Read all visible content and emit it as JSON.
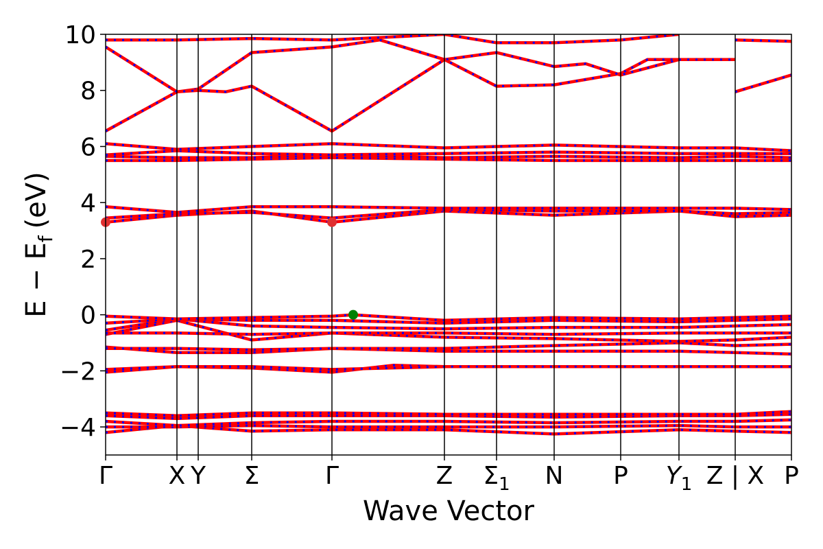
{
  "chart_data": {
    "type": "line",
    "title": "",
    "xlabel": "Wave Vector",
    "ylabel_main": "E − E",
    "ylabel_sub": "f",
    "ylabel_unit": "(eV)",
    "ylim": [
      -5,
      10
    ],
    "yticks": [
      -4,
      -2,
      0,
      2,
      4,
      6,
      8,
      10
    ],
    "ytick_labels": [
      "−4",
      "−2",
      "0",
      "2",
      "4",
      "6",
      "8",
      "10"
    ],
    "grid": false,
    "kpath": [
      {
        "label": "Γ",
        "x": 0.0
      },
      {
        "label": "X",
        "x": 0.104
      },
      {
        "label": "Y",
        "x": 0.135
      },
      {
        "label": "Σ",
        "x": 0.213
      },
      {
        "label": "Γ",
        "x": 0.33
      },
      {
        "label": "Z",
        "x": 0.494
      },
      {
        "label": "Σ",
        "sub": "1",
        "x": 0.57
      },
      {
        "label": "N",
        "x": 0.654
      },
      {
        "label": "P",
        "x": 0.751
      },
      {
        "label": "Y",
        "sub": "1",
        "italic": true,
        "x": 0.836
      },
      {
        "label": "Z | X",
        "x": 0.918
      },
      {
        "label": "P",
        "x": 1.0
      }
    ],
    "discontinuity_x": 0.918,
    "colors": {
      "band": "#ff0000",
      "overlay": "#0000ff",
      "vbm": "#008000",
      "cbm": "#e03030"
    },
    "vbm": {
      "x": 0.361,
      "y": 0.0
    },
    "cbm": [
      {
        "x": 0.0,
        "y": 3.3
      },
      {
        "x": 0.33,
        "y": 3.3
      }
    ],
    "bands": [
      {
        "name": "b1",
        "points": [
          [
            0,
            -4.2
          ],
          [
            0.104,
            -3.95
          ],
          [
            0.213,
            -4.15
          ],
          [
            0.33,
            -4.1
          ],
          [
            0.494,
            -4.1
          ],
          [
            0.654,
            -4.25
          ],
          [
            0.836,
            -4.1
          ],
          [
            0.918,
            -4.15
          ],
          [
            1.0,
            -4.2
          ]
        ]
      },
      {
        "name": "b2",
        "points": [
          [
            0,
            -4.0
          ],
          [
            0.104,
            -4.0
          ],
          [
            0.213,
            -3.95
          ],
          [
            0.33,
            -4.0
          ],
          [
            0.494,
            -4.0
          ],
          [
            0.654,
            -4.0
          ],
          [
            0.836,
            -3.95
          ],
          [
            0.918,
            -4.0
          ],
          [
            1.0,
            -4.0
          ]
        ]
      },
      {
        "name": "b3",
        "points": [
          [
            0,
            -3.8
          ],
          [
            0.104,
            -3.95
          ],
          [
            0.213,
            -3.85
          ],
          [
            0.33,
            -3.8
          ],
          [
            0.494,
            -3.8
          ],
          [
            0.654,
            -3.85
          ],
          [
            0.836,
            -3.8
          ],
          [
            0.918,
            -3.8
          ],
          [
            1.0,
            -3.75
          ]
        ]
      },
      {
        "name": "b4",
        "points": [
          [
            0,
            -3.6
          ],
          [
            0.104,
            -3.7
          ],
          [
            0.213,
            -3.6
          ],
          [
            0.33,
            -3.6
          ],
          [
            0.494,
            -3.6
          ],
          [
            0.654,
            -3.65
          ],
          [
            0.836,
            -3.6
          ],
          [
            0.918,
            -3.6
          ],
          [
            1.0,
            -3.55
          ]
        ]
      },
      {
        "name": "b5",
        "points": [
          [
            0,
            -3.5
          ],
          [
            0.104,
            -3.6
          ],
          [
            0.213,
            -3.5
          ],
          [
            0.33,
            -3.5
          ],
          [
            0.494,
            -3.55
          ],
          [
            0.654,
            -3.55
          ],
          [
            0.836,
            -3.55
          ],
          [
            0.918,
            -3.55
          ],
          [
            1.0,
            -3.45
          ]
        ]
      },
      {
        "name": "b6",
        "points": [
          [
            0,
            -2.05
          ],
          [
            0.104,
            -1.85
          ],
          [
            0.213,
            -1.9
          ],
          [
            0.33,
            -2.05
          ],
          [
            0.42,
            -1.8
          ],
          [
            0.494,
            -1.85
          ],
          [
            0.654,
            -1.85
          ],
          [
            0.836,
            -1.85
          ],
          [
            0.918,
            -1.85
          ],
          [
            1.0,
            -1.85
          ]
        ]
      },
      {
        "name": "b7",
        "points": [
          [
            0,
            -1.95
          ],
          [
            0.104,
            -1.85
          ],
          [
            0.213,
            -1.85
          ],
          [
            0.33,
            -1.95
          ],
          [
            0.494,
            -1.85
          ],
          [
            0.654,
            -1.85
          ],
          [
            0.836,
            -1.85
          ],
          [
            0.918,
            -1.85
          ],
          [
            1.0,
            -1.85
          ]
        ]
      },
      {
        "name": "b8",
        "points": [
          [
            0,
            -1.15
          ],
          [
            0.104,
            -1.35
          ],
          [
            0.213,
            -1.35
          ],
          [
            0.33,
            -1.2
          ],
          [
            0.494,
            -1.3
          ],
          [
            0.654,
            -1.3
          ],
          [
            0.836,
            -1.3
          ],
          [
            0.918,
            -1.35
          ],
          [
            1.0,
            -1.4
          ]
        ]
      },
      {
        "name": "b9",
        "points": [
          [
            0,
            -1.2
          ],
          [
            0.104,
            -1.2
          ],
          [
            0.213,
            -1.25
          ],
          [
            0.33,
            -1.2
          ],
          [
            0.494,
            -1.2
          ],
          [
            0.654,
            -1.1
          ],
          [
            0.836,
            -1.0
          ],
          [
            0.918,
            -1.1
          ],
          [
            1.0,
            -1.05
          ]
        ]
      },
      {
        "name": "b10",
        "points": [
          [
            0,
            -0.7
          ],
          [
            0.104,
            -0.2
          ],
          [
            0.213,
            -0.9
          ],
          [
            0.33,
            -0.65
          ],
          [
            0.494,
            -0.8
          ],
          [
            0.654,
            -0.85
          ],
          [
            0.836,
            -0.95
          ],
          [
            0.918,
            -0.9
          ],
          [
            1.0,
            -0.8
          ]
        ]
      },
      {
        "name": "b11",
        "points": [
          [
            0,
            -0.65
          ],
          [
            0.104,
            -0.65
          ],
          [
            0.213,
            -0.7
          ],
          [
            0.33,
            -0.65
          ],
          [
            0.494,
            -0.65
          ],
          [
            0.654,
            -0.7
          ],
          [
            0.836,
            -0.65
          ],
          [
            0.918,
            -0.65
          ],
          [
            1.0,
            -0.65
          ]
        ]
      },
      {
        "name": "b12",
        "points": [
          [
            0,
            -0.55
          ],
          [
            0.104,
            -0.15
          ],
          [
            0.213,
            -0.4
          ],
          [
            0.33,
            -0.45
          ],
          [
            0.494,
            -0.5
          ],
          [
            0.654,
            -0.45
          ],
          [
            0.836,
            -0.45
          ],
          [
            0.918,
            -0.4
          ],
          [
            1.0,
            -0.35
          ]
        ]
      },
      {
        "name": "b13",
        "points": [
          [
            0,
            -0.3
          ],
          [
            0.104,
            -0.15
          ],
          [
            0.213,
            -0.2
          ],
          [
            0.33,
            -0.2
          ],
          [
            0.494,
            -0.3
          ],
          [
            0.654,
            -0.2
          ],
          [
            0.836,
            -0.25
          ],
          [
            0.918,
            -0.2
          ],
          [
            1.0,
            -0.15
          ]
        ]
      },
      {
        "name": "b14",
        "points": [
          [
            0,
            -0.05
          ],
          [
            0.104,
            -0.15
          ],
          [
            0.213,
            -0.1
          ],
          [
            0.33,
            -0.05
          ],
          [
            0.361,
            0.0
          ],
          [
            0.494,
            -0.2
          ],
          [
            0.654,
            -0.1
          ],
          [
            0.836,
            -0.15
          ],
          [
            0.918,
            -0.1
          ],
          [
            1.0,
            -0.05
          ]
        ]
      },
      {
        "name": "b15",
        "points": [
          [
            0,
            3.3
          ],
          [
            0.104,
            3.55
          ],
          [
            0.213,
            3.7
          ],
          [
            0.33,
            3.3
          ],
          [
            0.494,
            3.7
          ],
          [
            0.654,
            3.55
          ],
          [
            0.836,
            3.7
          ],
          [
            0.918,
            3.5
          ],
          [
            1.0,
            3.55
          ]
        ]
      },
      {
        "name": "b16",
        "points": [
          [
            0,
            3.45
          ],
          [
            0.104,
            3.6
          ],
          [
            0.213,
            3.65
          ],
          [
            0.33,
            3.45
          ],
          [
            0.494,
            3.75
          ],
          [
            0.654,
            3.7
          ],
          [
            0.836,
            3.7
          ],
          [
            0.918,
            3.6
          ],
          [
            1.0,
            3.65
          ]
        ]
      },
      {
        "name": "b17",
        "points": [
          [
            0,
            3.85
          ],
          [
            0.104,
            3.65
          ],
          [
            0.213,
            3.85
          ],
          [
            0.33,
            3.85
          ],
          [
            0.494,
            3.8
          ],
          [
            0.654,
            3.8
          ],
          [
            0.836,
            3.8
          ],
          [
            0.918,
            3.8
          ],
          [
            1.0,
            3.75
          ]
        ]
      },
      {
        "name": "b18",
        "points": [
          [
            0,
            5.5
          ],
          [
            0.104,
            5.5
          ],
          [
            0.213,
            5.55
          ],
          [
            0.33,
            5.6
          ],
          [
            0.494,
            5.55
          ],
          [
            0.654,
            5.5
          ],
          [
            0.836,
            5.5
          ],
          [
            0.918,
            5.5
          ],
          [
            1.0,
            5.5
          ]
        ]
      },
      {
        "name": "b19",
        "points": [
          [
            0,
            5.65
          ],
          [
            0.104,
            5.6
          ],
          [
            0.213,
            5.6
          ],
          [
            0.33,
            5.7
          ],
          [
            0.494,
            5.6
          ],
          [
            0.654,
            5.65
          ],
          [
            0.836,
            5.6
          ],
          [
            0.918,
            5.65
          ],
          [
            1.0,
            5.6
          ]
        ]
      },
      {
        "name": "b20",
        "points": [
          [
            0,
            5.7
          ],
          [
            0.104,
            5.85
          ],
          [
            0.213,
            5.75
          ],
          [
            0.33,
            5.7
          ],
          [
            0.494,
            5.75
          ],
          [
            0.654,
            5.8
          ],
          [
            0.836,
            5.75
          ],
          [
            0.918,
            5.75
          ],
          [
            1.0,
            5.75
          ]
        ]
      },
      {
        "name": "b21",
        "points": [
          [
            0,
            6.1
          ],
          [
            0.104,
            5.9
          ],
          [
            0.213,
            6.0
          ],
          [
            0.33,
            6.1
          ],
          [
            0.494,
            5.95
          ],
          [
            0.654,
            6.05
          ],
          [
            0.836,
            5.95
          ],
          [
            0.918,
            5.95
          ],
          [
            1.0,
            5.85
          ]
        ]
      },
      {
        "name": "b22",
        "points": [
          [
            0,
            6.55
          ],
          [
            0.104,
            7.95
          ],
          [
            0.135,
            8.05
          ],
          [
            0.213,
            9.35
          ],
          [
            0.33,
            9.55
          ],
          [
            0.4,
            9.8
          ],
          [
            0.494,
            9.1
          ],
          [
            0.57,
            8.15
          ],
          [
            0.654,
            8.2
          ],
          [
            0.751,
            8.6
          ],
          [
            0.79,
            9.1
          ],
          [
            0.836,
            9.1
          ],
          [
            0.918,
            9.1
          ]
        ]
      },
      {
        "name": "b23",
        "points": [
          [
            0,
            9.55
          ],
          [
            0.104,
            7.95
          ],
          [
            0.135,
            8.0
          ],
          [
            0.175,
            7.95
          ],
          [
            0.213,
            8.15
          ],
          [
            0.33,
            6.55
          ],
          [
            0.494,
            9.1
          ],
          [
            0.57,
            9.35
          ],
          [
            0.654,
            8.85
          ],
          [
            0.7,
            8.95
          ],
          [
            0.751,
            8.55
          ],
          [
            0.836,
            9.1
          ],
          [
            0.918,
            9.1
          ]
        ]
      },
      {
        "name": "b24",
        "points": [
          [
            0,
            9.8
          ],
          [
            0.104,
            9.8
          ],
          [
            0.213,
            9.85
          ],
          [
            0.33,
            9.8
          ],
          [
            0.494,
            10.0
          ],
          [
            0.57,
            9.7
          ],
          [
            0.654,
            9.7
          ],
          [
            0.751,
            9.8
          ],
          [
            0.836,
            10.0
          ]
        ]
      },
      {
        "name": "b25",
        "points": [
          [
            0.918,
            7.95
          ],
          [
            1.0,
            8.55
          ]
        ]
      },
      {
        "name": "b26",
        "points": [
          [
            0.918,
            9.8
          ],
          [
            1.0,
            9.75
          ]
        ]
      }
    ]
  }
}
